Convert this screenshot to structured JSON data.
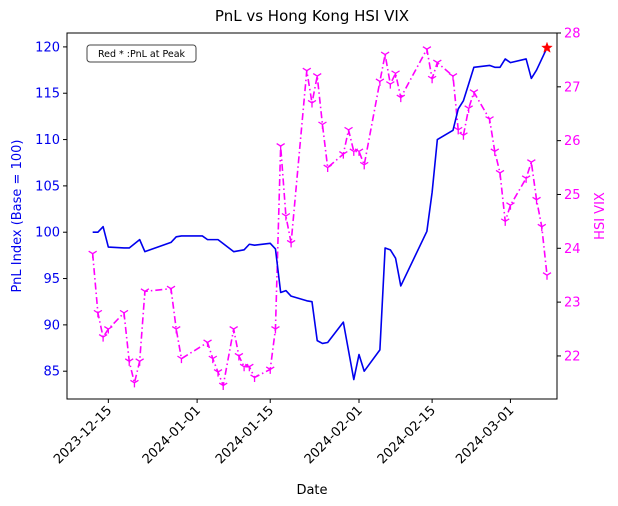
{
  "chart_data": {
    "type": "line",
    "title": "PnL vs Hong Kong HSI VIX",
    "xlabel": "Date",
    "ylabel": "PnL Index (Base = 100)",
    "y2label": "HSI VIX",
    "annotation": "Red * :PnL at Peak",
    "colors": {
      "pnl": "#0000ee",
      "vix": "#ff00ff",
      "peak": "#ff0000",
      "axes": "#000000"
    },
    "x_range": [
      "2023-12-09",
      "2024-03-08"
    ],
    "x_ticks": [
      "2023-12-15",
      "2024-01-01",
      "2024-01-15",
      "2024-02-01",
      "2024-02-15",
      "2024-03-01"
    ],
    "ylim": [
      82.0,
      121.5
    ],
    "yticks": [
      85,
      90,
      95,
      100,
      105,
      110,
      115,
      120
    ],
    "y2lim": [
      21.2,
      28.0
    ],
    "y2ticks": [
      22,
      23,
      24,
      25,
      26,
      27,
      28
    ],
    "grid": false,
    "series": [
      {
        "axis": "left",
        "style": "solid",
        "points": [
          [
            "2023-12-12",
            100.0
          ],
          [
            "2023-12-13",
            100.0
          ],
          [
            "2023-12-14",
            100.6
          ],
          [
            "2023-12-15",
            98.4
          ],
          [
            "2023-12-18",
            98.3
          ],
          [
            "2023-12-19",
            98.3
          ],
          [
            "2023-12-21",
            99.2
          ],
          [
            "2023-12-22",
            97.9
          ],
          [
            "2023-12-27",
            98.9
          ],
          [
            "2023-12-28",
            99.5
          ],
          [
            "2023-12-29",
            99.6
          ],
          [
            "2024-01-02",
            99.6
          ],
          [
            "2024-01-03",
            99.2
          ],
          [
            "2024-01-05",
            99.2
          ],
          [
            "2024-01-08",
            97.9
          ],
          [
            "2024-01-10",
            98.1
          ],
          [
            "2024-01-11",
            98.7
          ],
          [
            "2024-01-12",
            98.6
          ],
          [
            "2024-01-15",
            98.8
          ],
          [
            "2024-01-16",
            98.2
          ],
          [
            "2024-01-17",
            93.5
          ],
          [
            "2024-01-18",
            93.7
          ],
          [
            "2024-01-19",
            93.1
          ],
          [
            "2024-01-22",
            92.6
          ],
          [
            "2024-01-23",
            92.5
          ],
          [
            "2024-01-24",
            88.3
          ],
          [
            "2024-01-25",
            88.0
          ],
          [
            "2024-01-26",
            88.1
          ],
          [
            "2024-01-29",
            90.3
          ],
          [
            "2024-01-31",
            84.1
          ],
          [
            "2024-02-01",
            86.8
          ],
          [
            "2024-02-02",
            85.0
          ],
          [
            "2024-02-05",
            87.3
          ],
          [
            "2024-02-06",
            98.3
          ],
          [
            "2024-02-07",
            98.1
          ],
          [
            "2024-02-08",
            97.2
          ],
          [
            "2024-02-09",
            94.2
          ],
          [
            "2024-02-14",
            100.1
          ],
          [
            "2024-02-15",
            104.3
          ],
          [
            "2024-02-16",
            110.0
          ],
          [
            "2024-02-19",
            111.0
          ],
          [
            "2024-02-20",
            113.3
          ],
          [
            "2024-02-21",
            114.2
          ],
          [
            "2024-02-22",
            116.0
          ],
          [
            "2024-02-23",
            117.8
          ],
          [
            "2024-02-26",
            118.0
          ],
          [
            "2024-02-27",
            117.8
          ],
          [
            "2024-02-28",
            117.8
          ],
          [
            "2024-02-29",
            118.7
          ],
          [
            "2024-03-01",
            118.3
          ],
          [
            "2024-03-04",
            118.7
          ],
          [
            "2024-03-05",
            116.6
          ],
          [
            "2024-03-06",
            117.5
          ],
          [
            "2024-03-07",
            118.7
          ],
          [
            "2024-03-08",
            119.9
          ]
        ]
      },
      {
        "axis": "right",
        "style": "dashdot",
        "marker": "tri_down",
        "points": [
          [
            "2023-12-12",
            23.9
          ],
          [
            "2023-12-13",
            22.8
          ],
          [
            "2023-12-14",
            22.35
          ],
          [
            "2023-12-15",
            22.5
          ],
          [
            "2023-12-18",
            22.8
          ],
          [
            "2023-12-19",
            21.9
          ],
          [
            "2023-12-20",
            21.5
          ],
          [
            "2023-12-21",
            21.9
          ],
          [
            "2023-12-22",
            23.2
          ],
          [
            "2023-12-27",
            23.25
          ],
          [
            "2023-12-28",
            22.5
          ],
          [
            "2023-12-29",
            21.95
          ],
          [
            "2024-01-03",
            22.25
          ],
          [
            "2024-01-04",
            21.95
          ],
          [
            "2024-01-05",
            21.7
          ],
          [
            "2024-01-06",
            21.45
          ],
          [
            "2024-01-08",
            22.5
          ],
          [
            "2024-01-09",
            22.0
          ],
          [
            "2024-01-10",
            21.8
          ],
          [
            "2024-01-11",
            21.8
          ],
          [
            "2024-01-12",
            21.6
          ],
          [
            "2024-01-15",
            21.75
          ],
          [
            "2024-01-16",
            22.5
          ],
          [
            "2024-01-17",
            25.9
          ],
          [
            "2024-01-18",
            24.6
          ],
          [
            "2024-01-19",
            24.1
          ],
          [
            "2024-01-22",
            27.3
          ],
          [
            "2024-01-23",
            26.7
          ],
          [
            "2024-01-24",
            27.2
          ],
          [
            "2024-01-25",
            26.3
          ],
          [
            "2024-01-26",
            25.5
          ],
          [
            "2024-01-29",
            25.75
          ],
          [
            "2024-01-30",
            26.2
          ],
          [
            "2024-01-31",
            25.8
          ],
          [
            "2024-02-01",
            25.8
          ],
          [
            "2024-02-02",
            25.55
          ],
          [
            "2024-02-05",
            27.1
          ],
          [
            "2024-02-06",
            27.6
          ],
          [
            "2024-02-07",
            27.05
          ],
          [
            "2024-02-08",
            27.25
          ],
          [
            "2024-02-09",
            26.8
          ],
          [
            "2024-02-14",
            27.7
          ],
          [
            "2024-02-15",
            27.15
          ],
          [
            "2024-02-16",
            27.45
          ],
          [
            "2024-02-19",
            27.2
          ],
          [
            "2024-02-20",
            26.2
          ],
          [
            "2024-02-21",
            26.1
          ],
          [
            "2024-02-22",
            26.6
          ],
          [
            "2024-02-23",
            26.9
          ],
          [
            "2024-02-26",
            26.4
          ],
          [
            "2024-02-27",
            25.8
          ],
          [
            "2024-02-28",
            25.4
          ],
          [
            "2024-02-29",
            24.5
          ],
          [
            "2024-03-01",
            24.8
          ],
          [
            "2024-03-04",
            25.3
          ],
          [
            "2024-03-05",
            25.6
          ],
          [
            "2024-03-06",
            24.9
          ],
          [
            "2024-03-07",
            24.4
          ],
          [
            "2024-03-08",
            23.5
          ]
        ]
      }
    ],
    "peak": [
      "2024-03-08",
      119.9
    ]
  }
}
